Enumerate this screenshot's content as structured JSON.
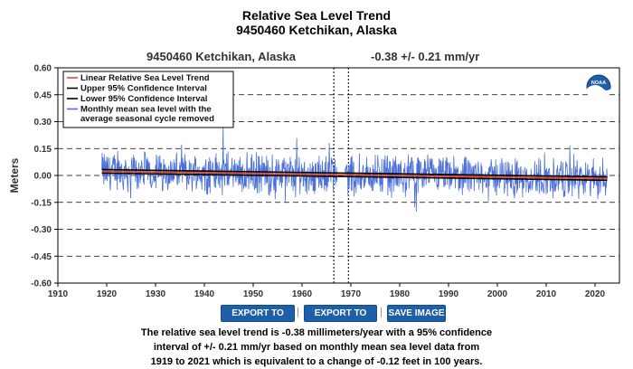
{
  "title": "Relative Sea Level Trend",
  "subtitle": "9450460 Ketchikan, Alaska",
  "station_label": "9450460 Ketchikan, Alaska",
  "rate_label": "-0.38 +/-  0.21 mm/yr",
  "buttons": {
    "export_text": "EXPORT TO TEXT",
    "export_csv": "EXPORT TO CSV",
    "save_image": "SAVE IMAGE",
    "separator": "|"
  },
  "description": {
    "line1": "The relative sea level trend is -0.38 millimeters/year with a 95% confidence",
    "line2": "interval of +/- 0.21 mm/yr based on monthly mean sea level data from",
    "line3": "1919 to 2021 which is equivalent to a change of -0.12 feet in 100 years."
  },
  "logo_text": "NOAA",
  "chart_data": {
    "type": "line",
    "ylabel": "Meters",
    "xlim": [
      1910,
      2025
    ],
    "ylim": [
      -0.6,
      0.6
    ],
    "xticks": [
      1910,
      1920,
      1930,
      1940,
      1950,
      1960,
      1970,
      1980,
      1990,
      2000,
      2010,
      2020
    ],
    "yticks": [
      "0.60",
      "0.45",
      "0.30",
      "0.15",
      "0.00",
      "-0.15",
      "-0.30",
      "-0.45",
      "-0.60"
    ],
    "grid": "horizontal dashed",
    "legend_position": "top-left",
    "data_gap": [
      1966.5,
      1969.5
    ],
    "series": [
      {
        "name": "Linear Relative Sea Level Trend",
        "color": "#e8452a",
        "x": [
          1919,
          2022.5
        ],
        "values": [
          0.023,
          -0.017
        ]
      },
      {
        "name": "Upper 95% Confidence Interval",
        "color": "#000000",
        "x": [
          1919,
          2022.5
        ],
        "values": [
          0.033,
          -0.008
        ]
      },
      {
        "name": "Lower 95% Confidence Interval",
        "color": "#000000",
        "x": [
          1919,
          2022.5
        ],
        "values": [
          0.013,
          -0.027
        ]
      },
      {
        "name": "Monthly mean sea level with the average seasonal cycle removed",
        "color": "#4a6fdc",
        "x_start": 1919,
        "x_end": 2022.5,
        "approx_range": [
          -0.28,
          0.3
        ]
      }
    ]
  }
}
